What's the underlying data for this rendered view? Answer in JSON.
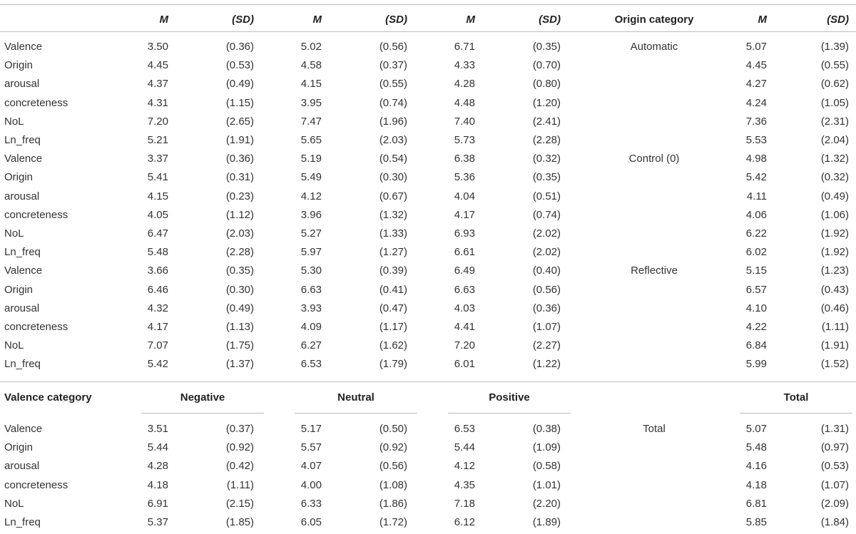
{
  "header": {
    "m_label": "M",
    "sd_label": "(SD)",
    "origin_category_label": "Origin category"
  },
  "groups": [
    {
      "origin": "Automatic",
      "rows": [
        {
          "label": "Valence",
          "neg": [
            "3.50",
            "(0.36)"
          ],
          "neu": [
            "5.02",
            "(0.56)"
          ],
          "pos": [
            "6.71",
            "(0.35)"
          ],
          "tot": [
            "5.07",
            "(1.39)"
          ]
        },
        {
          "label": "Origin",
          "neg": [
            "4.45",
            "(0.53)"
          ],
          "neu": [
            "4.58",
            "(0.37)"
          ],
          "pos": [
            "4.33",
            "(0.70)"
          ],
          "tot": [
            "4.45",
            "(0.55)"
          ]
        },
        {
          "label": "arousal",
          "neg": [
            "4.37",
            "(0.49)"
          ],
          "neu": [
            "4.15",
            "(0.55)"
          ],
          "pos": [
            "4.28",
            "(0.80)"
          ],
          "tot": [
            "4.27",
            "(0.62)"
          ]
        },
        {
          "label": "concreteness",
          "neg": [
            "4.31",
            "(1.15)"
          ],
          "neu": [
            "3.95",
            "(0.74)"
          ],
          "pos": [
            "4.48",
            "(1.20)"
          ],
          "tot": [
            "4.24",
            "(1.05)"
          ]
        },
        {
          "label": "NoL",
          "neg": [
            "7.20",
            "(2.65)"
          ],
          "neu": [
            "7.47",
            "(1.96)"
          ],
          "pos": [
            "7.40",
            "(2.41)"
          ],
          "tot": [
            "7.36",
            "(2.31)"
          ]
        },
        {
          "label": "Ln_freq",
          "neg": [
            "5.21",
            "(1.91)"
          ],
          "neu": [
            "5.65",
            "(2.03)"
          ],
          "pos": [
            "5.73",
            "(2.28)"
          ],
          "tot": [
            "5.53",
            "(2.04)"
          ]
        }
      ]
    },
    {
      "origin": "Control (0)",
      "rows": [
        {
          "label": "Valence",
          "neg": [
            "3.37",
            "(0.36)"
          ],
          "neu": [
            "5.19",
            "(0.54)"
          ],
          "pos": [
            "6.38",
            "(0.32)"
          ],
          "tot": [
            "4.98",
            "(1.32)"
          ]
        },
        {
          "label": "Origin",
          "neg": [
            "5.41",
            "(0.31)"
          ],
          "neu": [
            "5.49",
            "(0.30)"
          ],
          "pos": [
            "5.36",
            "(0.35)"
          ],
          "tot": [
            "5.42",
            "(0.32)"
          ]
        },
        {
          "label": "arousal",
          "neg": [
            "4.15",
            "(0.23)"
          ],
          "neu": [
            "4.12",
            "(0.67)"
          ],
          "pos": [
            "4.04",
            "(0.51)"
          ],
          "tot": [
            "4.11",
            "(0.49)"
          ]
        },
        {
          "label": "concreteness",
          "neg": [
            "4.05",
            "(1.12)"
          ],
          "neu": [
            "3.96",
            "(1.32)"
          ],
          "pos": [
            "4.17",
            "(0.74)"
          ],
          "tot": [
            "4.06",
            "(1.06)"
          ]
        },
        {
          "label": "NoL",
          "neg": [
            "6.47",
            "(2.03)"
          ],
          "neu": [
            "5.27",
            "(1.33)"
          ],
          "pos": [
            "6.93",
            "(2.02)"
          ],
          "tot": [
            "6.22",
            "(1.92)"
          ]
        },
        {
          "label": "Ln_freq",
          "neg": [
            "5.48",
            "(2.28)"
          ],
          "neu": [
            "5.97",
            "(1.27)"
          ],
          "pos": [
            "6.61",
            "(2.02)"
          ],
          "tot": [
            "6.02",
            "(1.92)"
          ]
        }
      ]
    },
    {
      "origin": "Reflective",
      "rows": [
        {
          "label": "Valence",
          "neg": [
            "3.66",
            "(0.35)"
          ],
          "neu": [
            "5.30",
            "(0.39)"
          ],
          "pos": [
            "6.49",
            "(0.40)"
          ],
          "tot": [
            "5.15",
            "(1.23)"
          ]
        },
        {
          "label": "Origin",
          "neg": [
            "6.46",
            "(0.30)"
          ],
          "neu": [
            "6.63",
            "(0.41)"
          ],
          "pos": [
            "6.63",
            "(0.56)"
          ],
          "tot": [
            "6.57",
            "(0.43)"
          ]
        },
        {
          "label": "arousal",
          "neg": [
            "4.32",
            "(0.49)"
          ],
          "neu": [
            "3.93",
            "(0.47)"
          ],
          "pos": [
            "4.03",
            "(0.36)"
          ],
          "tot": [
            "4.10",
            "(0.46)"
          ]
        },
        {
          "label": "concreteness",
          "neg": [
            "4.17",
            "(1.13)"
          ],
          "neu": [
            "4.09",
            "(1.17)"
          ],
          "pos": [
            "4.41",
            "(1.07)"
          ],
          "tot": [
            "4.22",
            "(1.11)"
          ]
        },
        {
          "label": "NoL",
          "neg": [
            "7.07",
            "(1.75)"
          ],
          "neu": [
            "6.27",
            "(1.62)"
          ],
          "pos": [
            "7.20",
            "(2.27)"
          ],
          "tot": [
            "6.84",
            "(1.91)"
          ]
        },
        {
          "label": "Ln_freq",
          "neg": [
            "5.42",
            "(1.37)"
          ],
          "neu": [
            "6.53",
            "(1.79)"
          ],
          "pos": [
            "6.01",
            "(1.22)"
          ],
          "tot": [
            "5.99",
            "(1.52)"
          ]
        }
      ]
    }
  ],
  "category_header": {
    "valence_category_label": "Valence category",
    "negative": "Negative",
    "neutral": "Neutral",
    "positive": "Positive",
    "total": "Total"
  },
  "total_group": {
    "origin": "Total",
    "rows": [
      {
        "label": "Valence",
        "neg": [
          "3.51",
          "(0.37)"
        ],
        "neu": [
          "5.17",
          "(0.50)"
        ],
        "pos": [
          "6.53",
          "(0.38)"
        ],
        "tot": [
          "5.07",
          "(1.31)"
        ]
      },
      {
        "label": "Origin",
        "neg": [
          "5.44",
          "(0.92)"
        ],
        "neu": [
          "5.57",
          "(0.92)"
        ],
        "pos": [
          "5.44",
          "(1.09)"
        ],
        "tot": [
          "5.48",
          "(0.97)"
        ]
      },
      {
        "label": "arousal",
        "neg": [
          "4.28",
          "(0.42)"
        ],
        "neu": [
          "4.07",
          "(0.56)"
        ],
        "pos": [
          "4.12",
          "(0.58)"
        ],
        "tot": [
          "4.16",
          "(0.53)"
        ]
      },
      {
        "label": "concreteness",
        "neg": [
          "4.18",
          "(1.11)"
        ],
        "neu": [
          "4.00",
          "(1.08)"
        ],
        "pos": [
          "4.35",
          "(1.01)"
        ],
        "tot": [
          "4.18",
          "(1.07)"
        ]
      },
      {
        "label": "NoL",
        "neg": [
          "6.91",
          "(2.15)"
        ],
        "neu": [
          "6.33",
          "(1.86)"
        ],
        "pos": [
          "7.18",
          "(2.20)"
        ],
        "tot": [
          "6.81",
          "(2.09)"
        ]
      },
      {
        "label": "Ln_freq",
        "neg": [
          "5.37",
          "(1.85)"
        ],
        "neu": [
          "6.05",
          "(1.72)"
        ],
        "pos": [
          "6.12",
          "(1.89)"
        ],
        "tot": [
          "5.85",
          "(1.84)"
        ]
      }
    ]
  }
}
